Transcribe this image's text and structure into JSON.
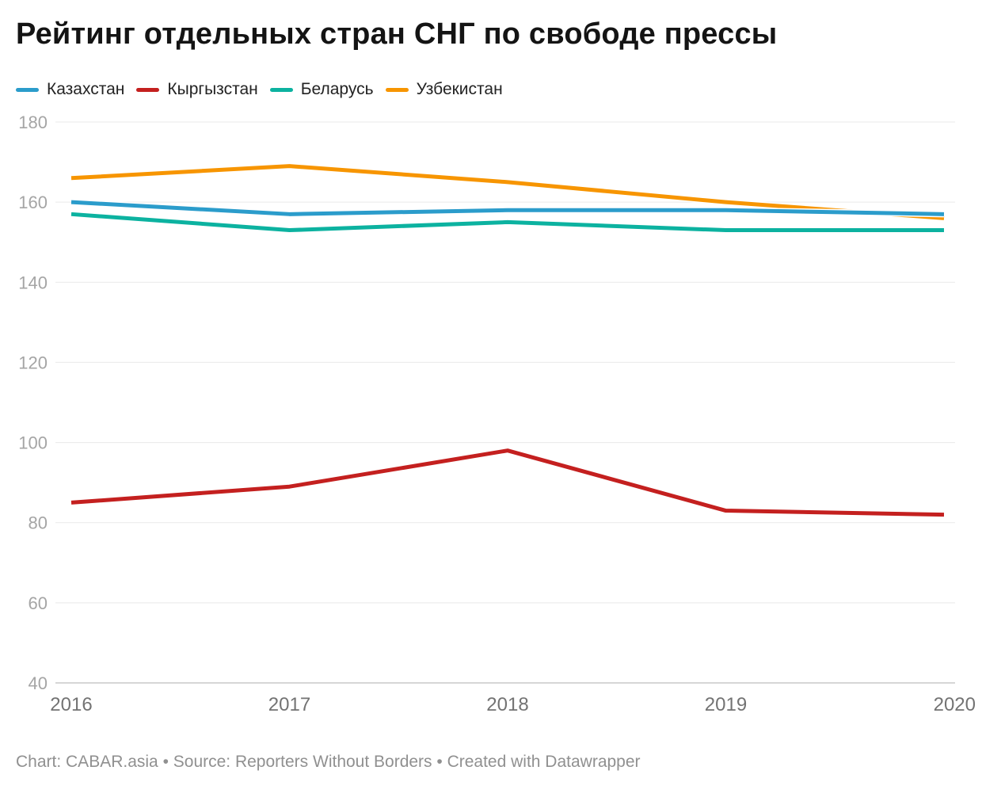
{
  "header": {
    "title": "Рейтинг отдельных стран СНГ по свободе прессы"
  },
  "legend": {
    "items": [
      {
        "label": "Казахстан",
        "color": "#2b9ccb"
      },
      {
        "label": "Кыргызстан",
        "color": "#c4201f"
      },
      {
        "label": "Беларусь",
        "color": "#0cb2a0"
      },
      {
        "label": "Узбекистан",
        "color": "#f79500"
      }
    ]
  },
  "chart_data": {
    "type": "line",
    "title": "Рейтинг отдельных стран СНГ по свободе прессы",
    "x": [
      2016,
      2017,
      2018,
      2019,
      2020
    ],
    "series": [
      {
        "name": "Казахстан",
        "color": "#2b9ccb",
        "values": [
          160,
          157,
          158,
          158,
          157
        ]
      },
      {
        "name": "Кыргызстан",
        "color": "#c4201f",
        "values": [
          85,
          89,
          98,
          83,
          82
        ]
      },
      {
        "name": "Беларусь",
        "color": "#0cb2a0",
        "values": [
          157,
          153,
          155,
          153,
          153
        ]
      },
      {
        "name": "Узбекистан",
        "color": "#f79500",
        "values": [
          166,
          169,
          165,
          160,
          156
        ]
      }
    ],
    "ylim": [
      40,
      180
    ],
    "yticks": [
      180,
      160,
      140,
      120,
      100,
      80,
      60,
      40
    ],
    "xlabel": "",
    "ylabel": "",
    "grid": true,
    "legend_position": "top",
    "gridline_color": "#e9e9e9",
    "axisline_color": "#c9c9c9"
  },
  "footer": {
    "text": "Chart: CABAR.asia • Source: Reporters Without Borders • Created with Datawrapper"
  }
}
